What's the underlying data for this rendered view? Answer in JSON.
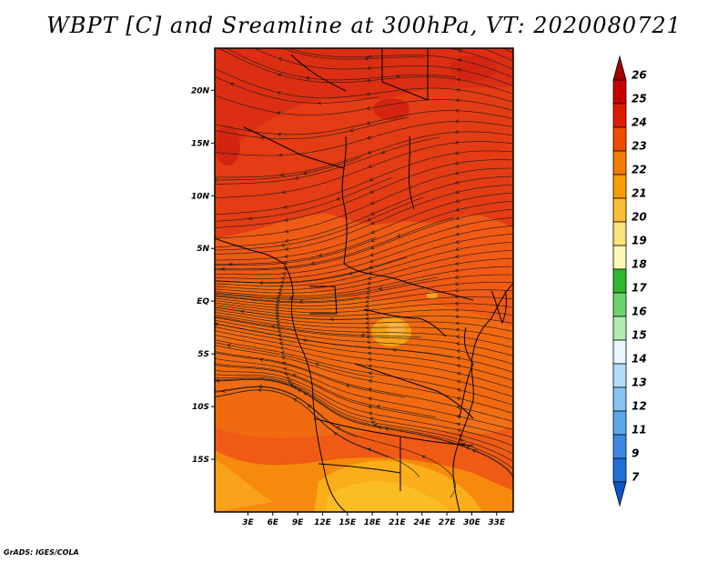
{
  "title": "WBPT [C] and Sreamline at 300hPa, VT: 2020080721",
  "credit": "GrADS: IGES/COLA",
  "map": {
    "lon_range": [
      -1,
      35
    ],
    "lat_range": [
      -20,
      24
    ],
    "lat_ticks": [
      {
        "value": 20,
        "label": "20N"
      },
      {
        "value": 15,
        "label": "15N"
      },
      {
        "value": 10,
        "label": "10N"
      },
      {
        "value": 5,
        "label": "5N"
      },
      {
        "value": 0,
        "label": "EQ"
      },
      {
        "value": -5,
        "label": "5S"
      },
      {
        "value": -10,
        "label": "10S"
      },
      {
        "value": -15,
        "label": "15S"
      }
    ],
    "lon_ticks": [
      {
        "value": 3,
        "label": "3E"
      },
      {
        "value": 6,
        "label": "6E"
      },
      {
        "value": 9,
        "label": "9E"
      },
      {
        "value": 12,
        "label": "12E"
      },
      {
        "value": 15,
        "label": "15E"
      },
      {
        "value": 18,
        "label": "18E"
      },
      {
        "value": 21,
        "label": "21E"
      },
      {
        "value": 24,
        "label": "24E"
      },
      {
        "value": 27,
        "label": "27E"
      },
      {
        "value": 30,
        "label": "30E"
      },
      {
        "value": 33,
        "label": "33E"
      }
    ]
  },
  "colorbar": {
    "labels": [
      "26",
      "25",
      "24",
      "23",
      "22",
      "21",
      "20",
      "19",
      "18",
      "17",
      "16",
      "15",
      "14",
      "13",
      "12",
      "11",
      "9",
      "7"
    ],
    "colors": [
      "#a50000",
      "#c80000",
      "#e01c00",
      "#f04c00",
      "#f57a00",
      "#fa9d00",
      "#fbbe30",
      "#fce27a",
      "#fdf7b5",
      "#2eb82e",
      "#6dd36d",
      "#b2ecb2",
      "#e6f7ff",
      "#b3ddfa",
      "#85c3f2",
      "#5aa7ea",
      "#3a8ae2",
      "#1e6fd8",
      "#0a55cc"
    ]
  },
  "colors": {
    "frame": "#000000",
    "streamline": "#1a1a1a"
  }
}
